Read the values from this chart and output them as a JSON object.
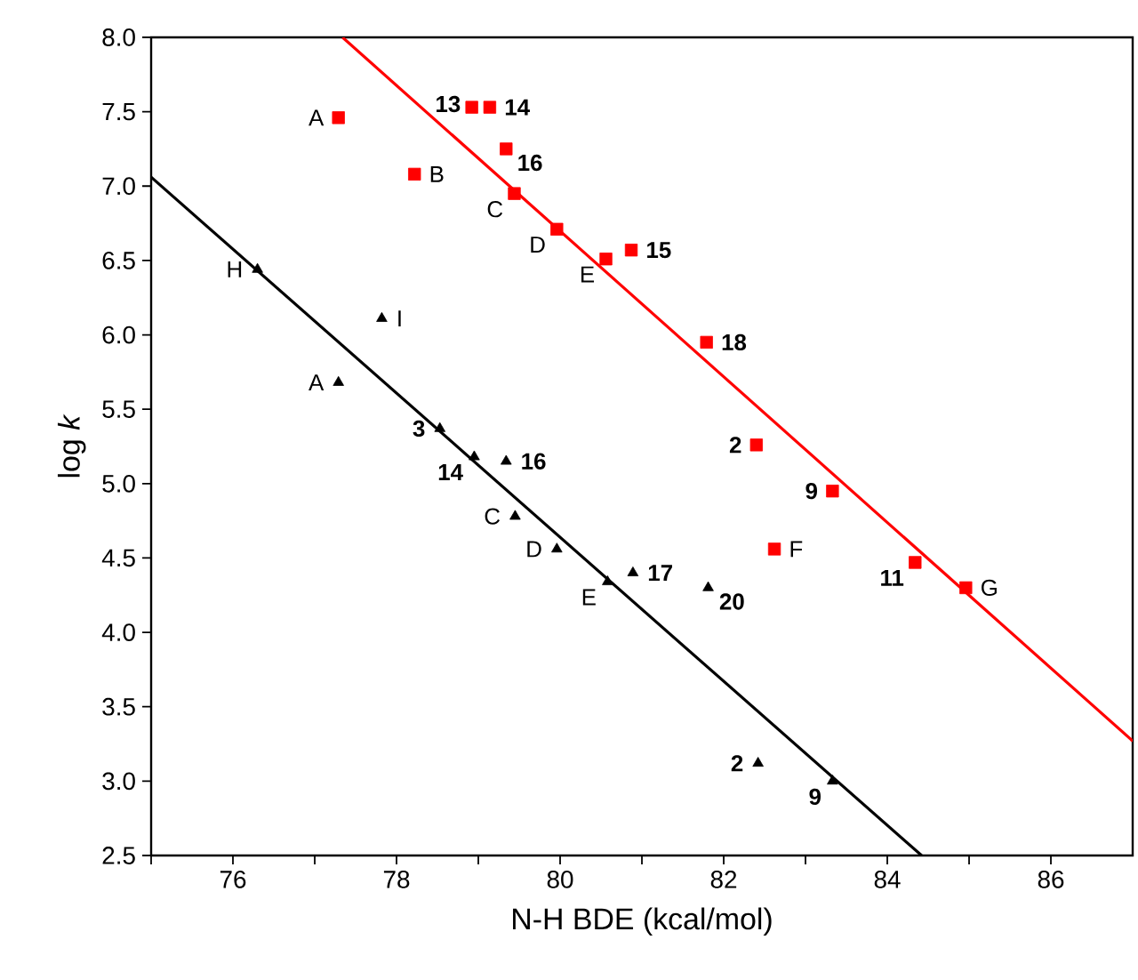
{
  "chart_data": {
    "type": "scatter",
    "xlabel": "N-H BDE (kcal/mol)",
    "ylabel": "log *k*",
    "xlim": [
      75,
      87
    ],
    "ylim": [
      2.5,
      8.0
    ],
    "xticks": [
      {
        "value": 75,
        "label": null
      },
      76,
      {
        "value": 77,
        "label": null
      },
      78,
      {
        "value": 79,
        "label": null
      },
      80,
      {
        "value": 81,
        "label": null
      },
      82,
      {
        "value": 83,
        "label": null
      },
      84,
      {
        "value": 85,
        "label": null
      },
      86
    ],
    "yticks": [
      {
        "value": 2.5,
        "label": "2.5"
      },
      {
        "value": 3.0,
        "label": "3.0"
      },
      {
        "value": 3.5,
        "label": "3.5"
      },
      {
        "value": 4.0,
        "label": "4.0"
      },
      {
        "value": 4.5,
        "label": "4.5"
      },
      {
        "value": 5.0,
        "label": "5.0"
      },
      {
        "value": 5.5,
        "label": "5.5"
      },
      {
        "value": 6.0,
        "label": "6.0"
      },
      {
        "value": 6.5,
        "label": "6.5"
      },
      {
        "value": 7.0,
        "label": "7.0"
      },
      {
        "value": 7.5,
        "label": "7.5"
      },
      {
        "value": 8.0,
        "label": "8.0"
      }
    ],
    "grid": false,
    "legend": false,
    "series": [
      {
        "color": "#ff0000",
        "marker": "square",
        "x": [
          77.29,
          78.92,
          79.14,
          79.34,
          78.22,
          79.44,
          79.96,
          80.56,
          80.87,
          81.79,
          82.4,
          83.33,
          82.62,
          84.34,
          84.96
        ],
        "values": [
          7.46,
          7.53,
          7.53,
          7.25,
          7.08,
          6.95,
          6.71,
          6.51,
          6.57,
          5.95,
          5.26,
          4.95,
          4.56,
          4.47,
          4.3
        ]
      },
      {
        "color": "#000000",
        "marker": "triangle",
        "x": [
          76.3,
          77.82,
          77.29,
          78.53,
          78.95,
          79.34,
          79.45,
          79.96,
          80.58,
          80.89,
          81.81,
          82.42,
          83.33
        ],
        "values": [
          6.44,
          6.11,
          5.68,
          5.37,
          5.18,
          5.15,
          4.78,
          4.56,
          4.34,
          4.4,
          4.3,
          3.12,
          3.0
        ]
      },
      {
        "type": "line",
        "color": "#ff0000",
        "marker": "none",
        "x": [
          77.34,
          87.0
        ],
        "values": [
          8.0,
          3.27
        ]
      },
      {
        "type": "line",
        "color": "#000000",
        "marker": "none",
        "x": [
          75.0,
          84.42
        ],
        "values": [
          7.06,
          2.5
        ]
      }
    ],
    "annotations": [
      {
        "text": "A",
        "x": 77.29,
        "y": 7.46
      },
      {
        "text": "13",
        "x": 78.92,
        "y": 7.53
      },
      {
        "text": "14",
        "x": 79.14,
        "y": 7.53
      },
      {
        "text": "16",
        "x": 79.34,
        "y": 7.25
      },
      {
        "text": "B",
        "x": 78.22,
        "y": 7.08
      },
      {
        "text": "C",
        "x": 79.44,
        "y": 6.95
      },
      {
        "text": "D",
        "x": 79.96,
        "y": 6.71
      },
      {
        "text": "E",
        "x": 80.56,
        "y": 6.51
      },
      {
        "text": "15",
        "x": 80.87,
        "y": 6.57
      },
      {
        "text": "18",
        "x": 81.79,
        "y": 5.95
      },
      {
        "text": "2",
        "x": 82.4,
        "y": 5.26
      },
      {
        "text": "9",
        "x": 83.33,
        "y": 4.95
      },
      {
        "text": "F",
        "x": 82.62,
        "y": 4.56
      },
      {
        "text": "11",
        "x": 84.34,
        "y": 4.47
      },
      {
        "text": "G",
        "x": 84.96,
        "y": 4.3
      },
      {
        "text": "H",
        "x": 76.3,
        "y": 6.44
      },
      {
        "text": "I",
        "x": 77.82,
        "y": 6.11
      },
      {
        "text": "A",
        "x": 77.29,
        "y": 5.68
      },
      {
        "text": "3",
        "x": 78.53,
        "y": 5.37
      },
      {
        "text": "14",
        "x": 78.95,
        "y": 5.18
      },
      {
        "text": "16",
        "x": 79.34,
        "y": 5.15
      },
      {
        "text": "C",
        "x": 79.45,
        "y": 4.78
      },
      {
        "text": "D",
        "x": 79.96,
        "y": 4.56
      },
      {
        "text": "E",
        "x": 80.58,
        "y": 4.34
      },
      {
        "text": "17",
        "x": 80.89,
        "y": 4.4
      },
      {
        "text": "20",
        "x": 81.81,
        "y": 4.3
      },
      {
        "text": "2",
        "x": 82.42,
        "y": 3.12
      },
      {
        "text": "9",
        "x": 83.33,
        "y": 3.0
      }
    ]
  }
}
